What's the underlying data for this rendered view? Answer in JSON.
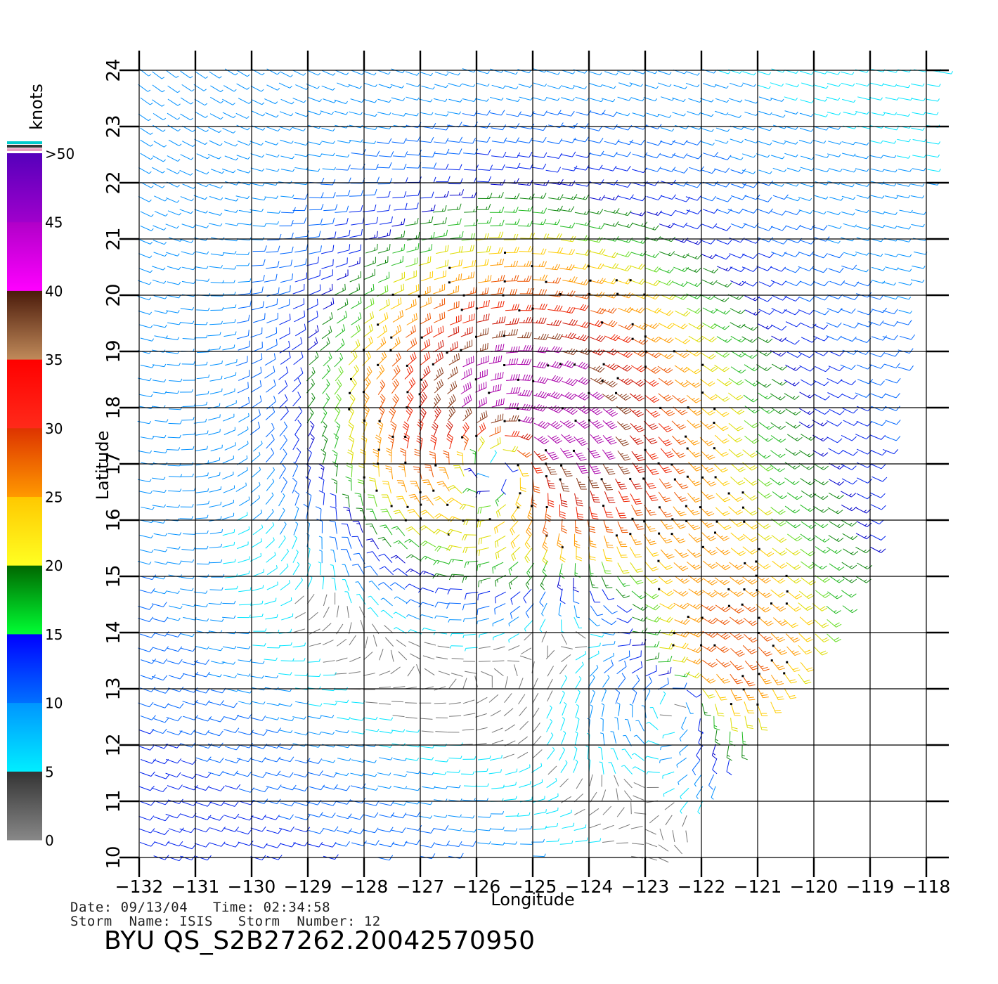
{
  "map": {
    "xlabel": "Longitude",
    "ylabel": "Latitude",
    "lon_range": [
      -132,
      -118
    ],
    "lat_range": [
      10,
      24
    ],
    "lon_ticks": [
      -132,
      -131,
      -130,
      -129,
      -128,
      -127,
      -126,
      -125,
      -124,
      -123,
      -122,
      -121,
      -120,
      -119,
      -118
    ],
    "lat_ticks": [
      10,
      11,
      12,
      13,
      14,
      15,
      16,
      17,
      18,
      19,
      20,
      21,
      22,
      23,
      24
    ],
    "lon_tick_labels": [
      "−132",
      "−131",
      "−130",
      "−129",
      "−128",
      "−127",
      "−126",
      "−125",
      "−124",
      "−123",
      "−122",
      "−121",
      "−120",
      "−119",
      "−118"
    ],
    "lat_tick_labels": [
      "10",
      "11",
      "12",
      "13",
      "14",
      "15",
      "16",
      "17",
      "18",
      "19",
      "20",
      "21",
      "22",
      "23",
      "24"
    ],
    "grid": true,
    "storm_center": {
      "lon": -125.6,
      "lat": 17.1
    },
    "secondary_center": {
      "lon": -122.3,
      "lat": 12.9
    }
  },
  "colorbar": {
    "unit": "knots",
    "tick_labels": [
      "0",
      "5",
      "10",
      "15",
      "20",
      "25",
      "30",
      "35",
      "40",
      "45",
      ">50"
    ],
    "segments": [
      {
        "min": 0,
        "max": 5,
        "top": "#333333",
        "bottom": "#888888"
      },
      {
        "min": 5,
        "max": 10,
        "top": "#0095ff",
        "bottom": "#00eeff"
      },
      {
        "min": 10,
        "max": 15,
        "top": "#0000ff",
        "bottom": "#0070ff"
      },
      {
        "min": 15,
        "max": 20,
        "top": "#006600",
        "bottom": "#00ff33"
      },
      {
        "min": 20,
        "max": 25,
        "top": "#ffc800",
        "bottom": "#ffff22"
      },
      {
        "min": 25,
        "max": 30,
        "top": "#dd3300",
        "bottom": "#ff9900"
      },
      {
        "min": 30,
        "max": 35,
        "top": "#ff0000",
        "bottom": "#ff2a1a"
      },
      {
        "min": 35,
        "max": 40,
        "top": "#4a1a0a",
        "bottom": "#c08a5a"
      },
      {
        "min": 40,
        "max": 45,
        "top": "#b000c8",
        "bottom": "#ff00ff"
      },
      {
        "min": 45,
        "max": 50,
        "top": "#5500bb",
        "bottom": "#a000cc"
      }
    ],
    "top_stripes": [
      "#00cccc",
      "#333333",
      "#e8a0c0"
    ]
  },
  "info": {
    "line1": "Date: 09/13/04   Time: 02:34:58",
    "line2": "Storm  Name: ISIS   Storm  Number: 12",
    "product_id": "BYU  QS_S2B27262.20042570950"
  }
}
